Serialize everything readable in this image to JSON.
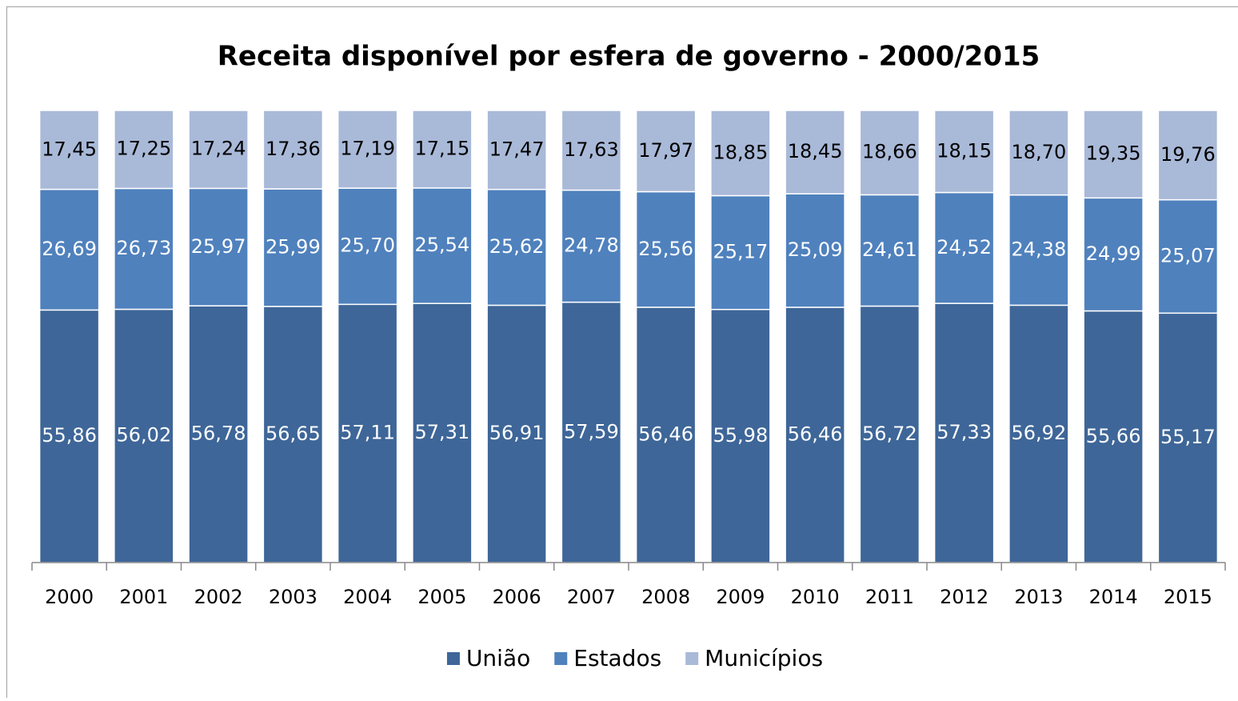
{
  "chart_data": {
    "type": "stacked_bar",
    "title": "Receita disponível por esfera de governo - 2000/2015",
    "categories": [
      "2000",
      "2001",
      "2002",
      "2003",
      "2004",
      "2005",
      "2006",
      "2007",
      "2008",
      "2009",
      "2010",
      "2011",
      "2012",
      "2013",
      "2014",
      "2015"
    ],
    "series": [
      {
        "name": "União",
        "color": "#3e6698",
        "values": [
          55.86,
          56.02,
          56.78,
          56.65,
          57.11,
          57.31,
          56.91,
          57.59,
          56.46,
          55.98,
          56.46,
          56.72,
          57.33,
          56.92,
          55.66,
          55.17
        ],
        "value_labels": [
          "55,86",
          "56,02",
          "56,78",
          "56,65",
          "57,11",
          "57,31",
          "56,91",
          "57,59",
          "56,46",
          "55,98",
          "56,46",
          "56,72",
          "57,33",
          "56,92",
          "55,66",
          "55,17"
        ]
      },
      {
        "name": "Estados",
        "color": "#4f81bd",
        "values": [
          26.69,
          26.73,
          25.97,
          25.99,
          25.7,
          25.54,
          25.62,
          24.78,
          25.56,
          25.17,
          25.09,
          24.61,
          24.52,
          24.38,
          24.99,
          25.07
        ],
        "value_labels": [
          "26,69",
          "26,73",
          "25,97",
          "25,99",
          "25,70",
          "25,54",
          "25,62",
          "24,78",
          "25,56",
          "25,17",
          "25,09",
          "24,61",
          "24,52",
          "24,38",
          "24,99",
          "25,07"
        ]
      },
      {
        "name": "Municípios",
        "color": "#a9b9d8",
        "values": [
          17.45,
          17.25,
          17.24,
          17.36,
          17.19,
          17.15,
          17.47,
          17.63,
          17.97,
          18.85,
          18.45,
          18.66,
          18.15,
          18.7,
          19.35,
          19.76
        ],
        "value_labels": [
          "17,45",
          "17,25",
          "17,24",
          "17,36",
          "17,19",
          "17,15",
          "17,47",
          "17,63",
          "17,97",
          "18,85",
          "18,45",
          "18,66",
          "18,15",
          "18,70",
          "19,35",
          "19,76"
        ]
      }
    ],
    "legend": "bottom"
  }
}
